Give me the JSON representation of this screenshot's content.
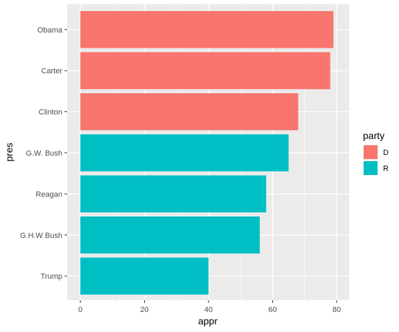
{
  "chart_data": {
    "type": "bar",
    "orientation": "horizontal",
    "categories": [
      "Obama",
      "Carter",
      "Clinton",
      "G.W. Bush",
      "Reagan",
      "G.H.W Bush",
      "Trump"
    ],
    "values": [
      79,
      78,
      68,
      65,
      58,
      56,
      40
    ],
    "party": [
      "D",
      "D",
      "D",
      "R",
      "R",
      "R",
      "R"
    ],
    "xlabel": "appr",
    "ylabel": "pres",
    "xlim": [
      0,
      80
    ],
    "xticks": [
      0,
      20,
      40,
      60,
      80
    ],
    "grid": true,
    "legend": {
      "title": "party",
      "placement": "right",
      "entries": [
        {
          "label": "D",
          "color": "#F8766D"
        },
        {
          "label": "R",
          "color": "#00BFC4"
        }
      ]
    },
    "colors": {
      "D": "#F8766D",
      "R": "#00BFC4"
    }
  }
}
